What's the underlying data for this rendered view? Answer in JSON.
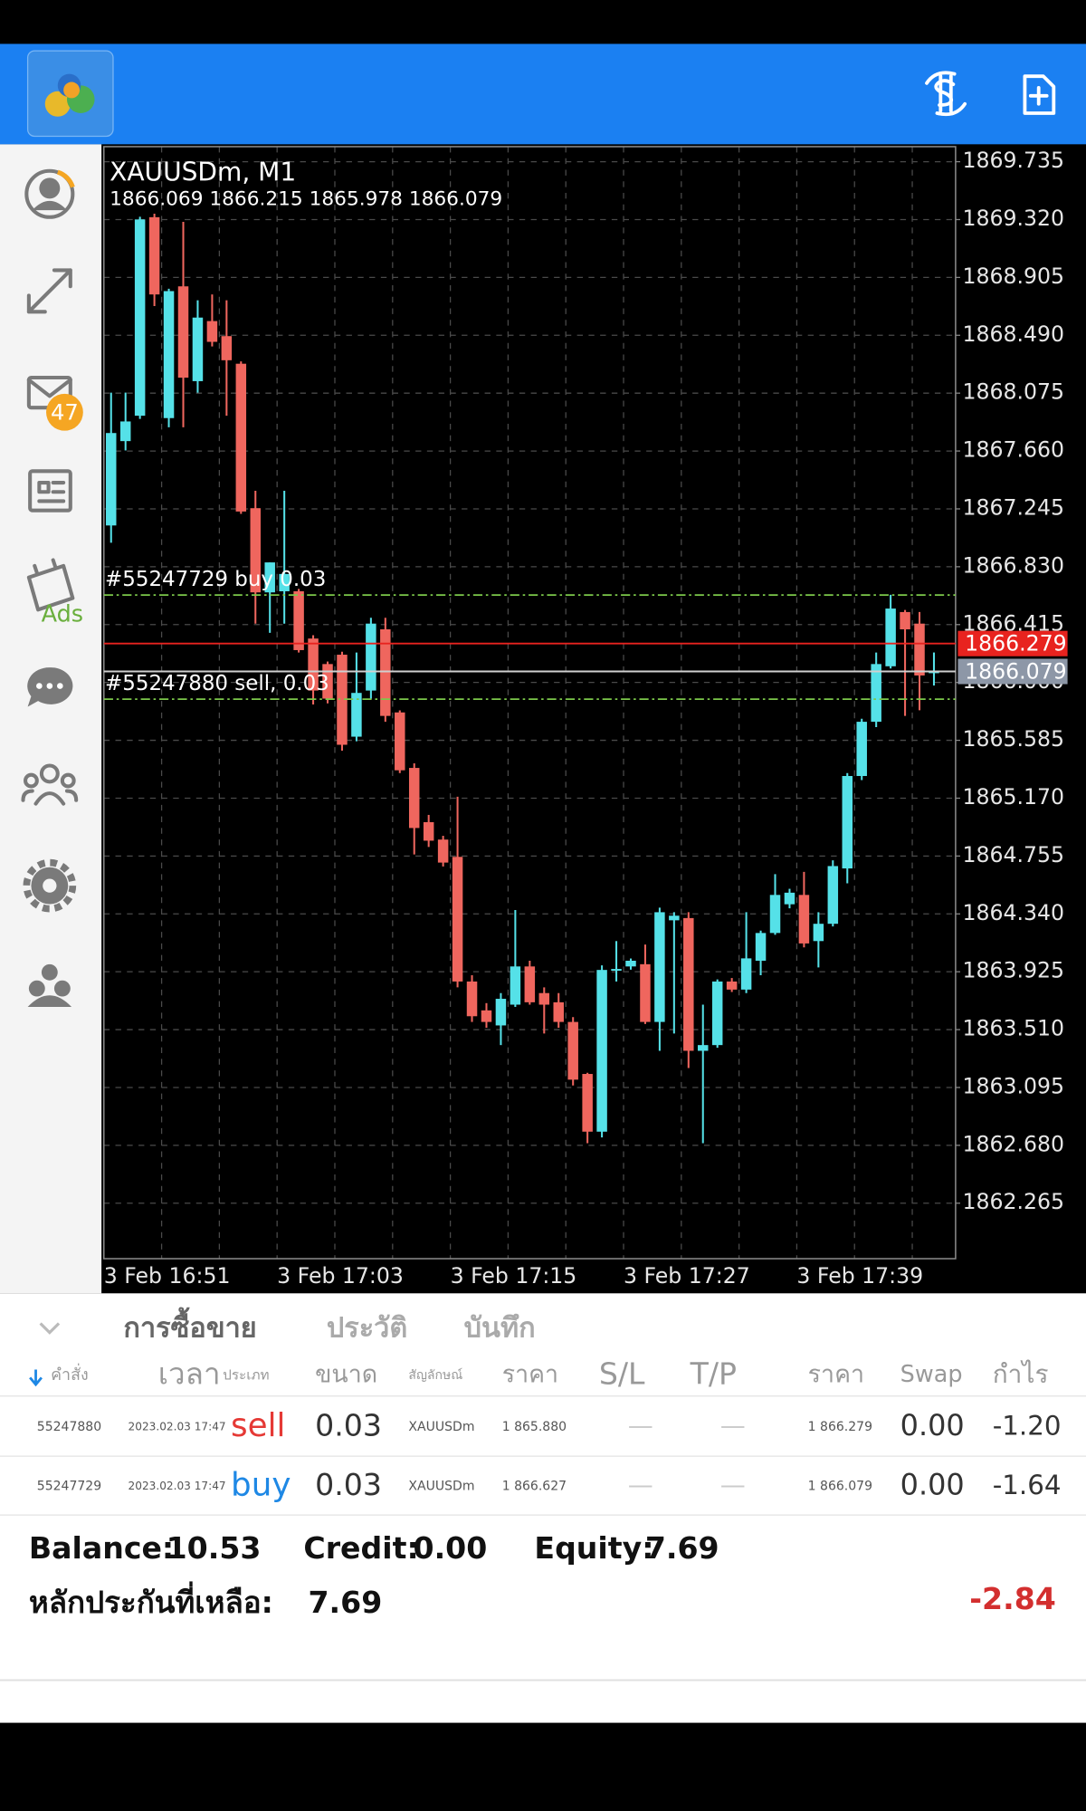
{
  "sidebar": {
    "mail_badge": "47",
    "ads_label": "Ads"
  },
  "chart_data": {
    "type": "candlestick",
    "title": "XAUUSDm, M1",
    "up_color": "#55e1e8",
    "down_color": "#ef665e",
    "grid": true,
    "ylim": [
      1861.867,
      1869.843
    ],
    "yticks": [
      1869.735,
      {
        "value": 1869.32,
        "label": "1869.320"
      },
      1868.905,
      {
        "value": 1868.49,
        "label": "1868.490"
      },
      1868.075,
      {
        "value": 1867.66,
        "label": "1867.660"
      },
      1867.245,
      {
        "value": 1866.83,
        "label": "1866.830"
      },
      1866.415,
      {
        "value": 1866,
        "label": "1866.000"
      },
      1865.585,
      {
        "value": 1865.17,
        "label": "1865.170"
      },
      1864.755,
      {
        "value": 1864.34,
        "label": "1864.340"
      },
      1863.925,
      {
        "value": 1863.51,
        "label": "1863.510"
      },
      1863.095,
      {
        "value": 1862.68,
        "label": "1862.680"
      },
      1862.265
    ],
    "x_labels": [
      "3 Feb 16:51",
      "3 Feb 17:03",
      "3 Feb 17:15",
      "3 Feb 17:27",
      "3 Feb 17:39"
    ],
    "open": [
      1867.126,
      1867.731,
      1867.913,
      1869.337,
      1867.896,
      1868.841,
      1868.161,
      1868.592,
      1868.484,
      1868.286,
      1867.25,
      1866.646,
      1866.654,
      1866.654,
      1866.315,
      1866.132,
      1866.199,
      1865.611,
      1865.942,
      1866.381,
      1865.785,
      1865.387,
      1864.998,
      1864.873,
      1864.749,
      1863.855,
      1863.648,
      1863.54,
      1863.689,
      1863.963,
      1863.772,
      1863.706,
      1863.565,
      1863.192,
      1862.778,
      1863.938,
      1863.963,
      1863.979,
      1863.565,
      1864.294,
      1864.31,
      1863.358,
      1863.399,
      1863.855,
      1863.797,
      1864.004,
      1864.203,
      1864.409,
      1864.476,
      1864.145,
      1864.269,
      1864.666,
      1865.329,
      1865.718,
      1866.116,
      1866.505,
      1866.422,
      1866.069
    ],
    "high": [
      1868.079,
      1868.079,
      1869.34,
      1869.362,
      1868.824,
      1869.304,
      1868.741,
      1868.783,
      1868.741,
      1868.303,
      1867.375,
      1866.861,
      1867.375,
      1866.671,
      1866.339,
      1866.15,
      1866.22,
      1866.215,
      1866.464,
      1866.464,
      1865.8,
      1865.42,
      1865.05,
      1864.9,
      1865.18,
      1863.9,
      1863.7,
      1863.772,
      1864.368,
      1864.004,
      1863.813,
      1863.772,
      1863.6,
      1863.2,
      1863.971,
      1864.145,
      1864.02,
      1864.12,
      1864.385,
      1864.352,
      1864.352,
      1863.689,
      1863.87,
      1863.88,
      1864.352,
      1864.22,
      1864.625,
      1864.52,
      1864.641,
      1864.352,
      1864.724,
      1865.35,
      1865.74,
      1866.215,
      1866.629,
      1866.52,
      1866.505,
      1866.215
    ],
    "low": [
      1867.002,
      1867.664,
      1867.89,
      1868.7,
      1867.83,
      1867.83,
      1868.079,
      1868.41,
      1867.913,
      1867.209,
      1866.422,
      1866.356,
      1866.422,
      1866.215,
      1865.842,
      1865.85,
      1865.511,
      1865.578,
      1865.884,
      1865.718,
      1865.35,
      1864.766,
      1864.82,
      1864.68,
      1863.813,
      1863.565,
      1863.523,
      1863.399,
      1863.673,
      1863.689,
      1863.482,
      1863.523,
      1863.109,
      1862.695,
      1862.737,
      1863.855,
      1863.94,
      1863.55,
      1863.358,
      1863.482,
      1863.234,
      1862.695,
      1863.38,
      1863.78,
      1863.772,
      1863.9,
      1864.19,
      1864.38,
      1864.1,
      1863.956,
      1864.25,
      1864.559,
      1865.3,
      1865.68,
      1866.1,
      1865.76,
      1865.801,
      1865.978
    ],
    "close": [
      1867.789,
      1867.872,
      1869.321,
      1868.783,
      1868.807,
      1868.186,
      1868.617,
      1868.443,
      1868.311,
      1867.226,
      1866.646,
      1866.861,
      1866.778,
      1866.232,
      1865.942,
      1865.884,
      1865.553,
      1865.925,
      1866.422,
      1865.76,
      1865.37,
      1864.956,
      1864.865,
      1864.708,
      1863.855,
      1863.606,
      1863.565,
      1863.731,
      1863.963,
      1863.706,
      1863.689,
      1863.565,
      1863.151,
      1862.778,
      1863.938,
      1863.945,
      1864.004,
      1863.565,
      1864.352,
      1864.327,
      1863.358,
      1863.399,
      1863.855,
      1863.797,
      1864.021,
      1864.203,
      1864.476,
      1864.492,
      1864.128,
      1864.269,
      1864.683,
      1865.329,
      1865.718,
      1866.132,
      1866.53,
      1866.381,
      1866.05,
      1866.079
    ],
    "orders": [
      {
        "label": "#55247729 buy 0.03",
        "price": 1866.627
      },
      {
        "label": "#55247880 sell, 0.03",
        "price": 1865.88
      }
    ],
    "ask": 1866.279,
    "bid": 1866.079
  },
  "terminal": {
    "tabs": [
      "การซื้อขาย",
      "ประวัติ",
      "บันทึก"
    ],
    "columns": [
      "คำสั่ง",
      "เวลา",
      "ประเภท",
      "ขนาด",
      "สัญลักษณ์",
      "ราคา",
      "S/L",
      "T/P",
      "ราคา",
      "Swap",
      "กำไร"
    ],
    "rows": [
      [
        "55247880",
        "2023.02.03 17:47",
        "sell",
        "0.03",
        "XAUUSDm",
        "1 865.880",
        "—",
        "—",
        "1 866.279",
        "0.00",
        "-1.20"
      ],
      [
        "55247729",
        "2023.02.03 17:47",
        "buy",
        "0.03",
        "XAUUSDm",
        "1 866.627",
        "—",
        "—",
        "1 866.079",
        "0.00",
        "-1.64"
      ]
    ]
  },
  "summary": {
    "balance_label": "Balance:",
    "balance": "10.53",
    "credit_label": "Credit:",
    "credit": "0.00",
    "equity_label": "Equity:",
    "equity": "7.69",
    "margin_label": "หลักประกันที่เหลือ:",
    "margin": "7.69",
    "profit": "-2.84"
  }
}
